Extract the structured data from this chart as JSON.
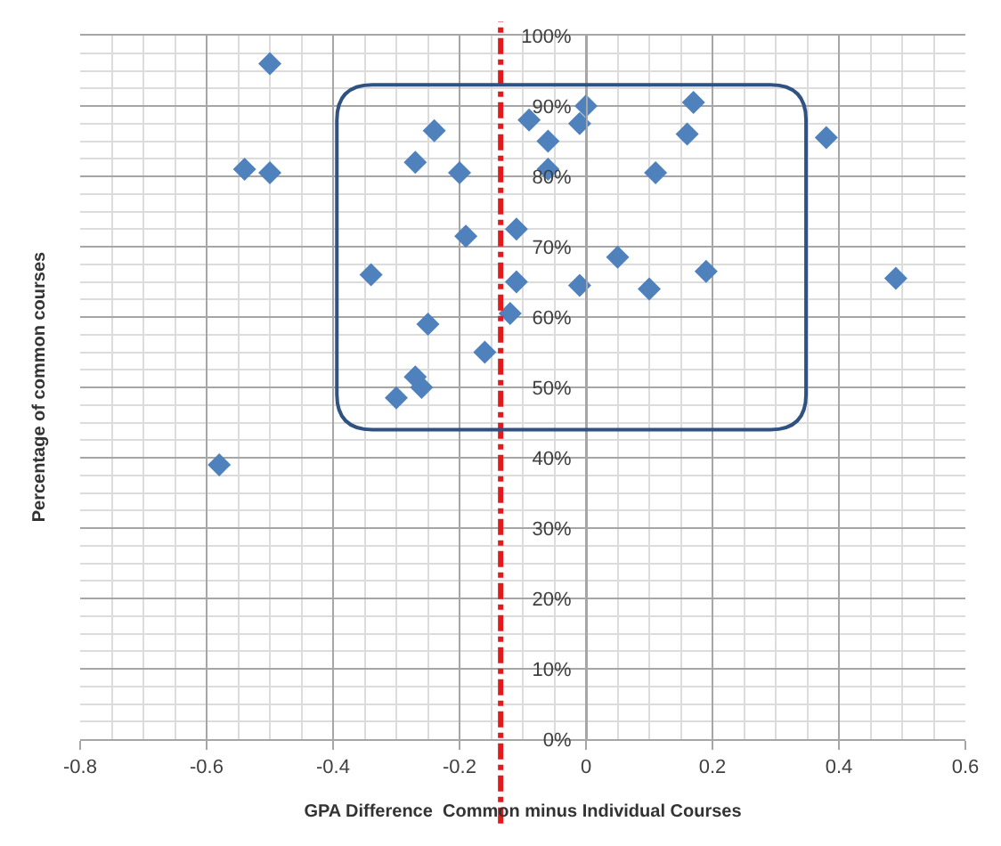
{
  "chart_data": {
    "type": "scatter",
    "xlabel": "GPA Difference  Common minus Individual Courses",
    "ylabel": "Percentage of common courses",
    "marker": "diamond",
    "grid": true,
    "xlim": [
      -0.8,
      0.6
    ],
    "xticks": [
      -0.8,
      -0.6,
      -0.4,
      -0.2,
      0,
      0.2,
      0.4,
      0.6
    ],
    "ylim": [
      0,
      100
    ],
    "yticks": [
      {
        "value": 0,
        "label": "0%"
      },
      {
        "value": 10,
        "label": "10%"
      },
      {
        "value": 20,
        "label": "20%"
      },
      {
        "value": 30,
        "label": "30%"
      },
      {
        "value": 40,
        "label": "40%"
      },
      {
        "value": 50,
        "label": "50%"
      },
      {
        "value": 60,
        "label": "60%"
      },
      {
        "value": 70,
        "label": "70%"
      },
      {
        "value": 80,
        "label": "80%"
      },
      {
        "value": 90,
        "label": "90%"
      },
      {
        "value": 100,
        "label": "100%"
      }
    ],
    "series": [
      {
        "color": "#4f81bd",
        "x": [
          -0.5,
          -0.54,
          -0.5,
          -0.24,
          -0.27,
          -0.2,
          -0.19,
          -0.34,
          -0.25,
          -0.27,
          -0.26,
          -0.3,
          -0.16,
          -0.11,
          -0.11,
          -0.12,
          -0.09,
          -0.06,
          -0.06,
          0.0,
          -0.01,
          0.05,
          -0.01,
          0.1,
          0.11,
          0.16,
          0.17,
          0.19,
          0.38,
          0.49,
          -0.58
        ],
        "values": [
          96,
          81,
          80.5,
          86.5,
          82,
          80.5,
          71.5,
          66,
          59,
          51.5,
          50,
          48.5,
          55,
          72.5,
          65,
          60.5,
          88,
          85,
          81,
          90,
          87.5,
          68.5,
          64.5,
          64,
          80.5,
          86,
          90.5,
          66.5,
          85.5,
          65.5,
          39
        ]
      }
    ],
    "ref_lines": [
      {
        "axis": "x",
        "value": -0.135,
        "color": "#e31a1c",
        "line_style": "dashed"
      }
    ]
  }
}
